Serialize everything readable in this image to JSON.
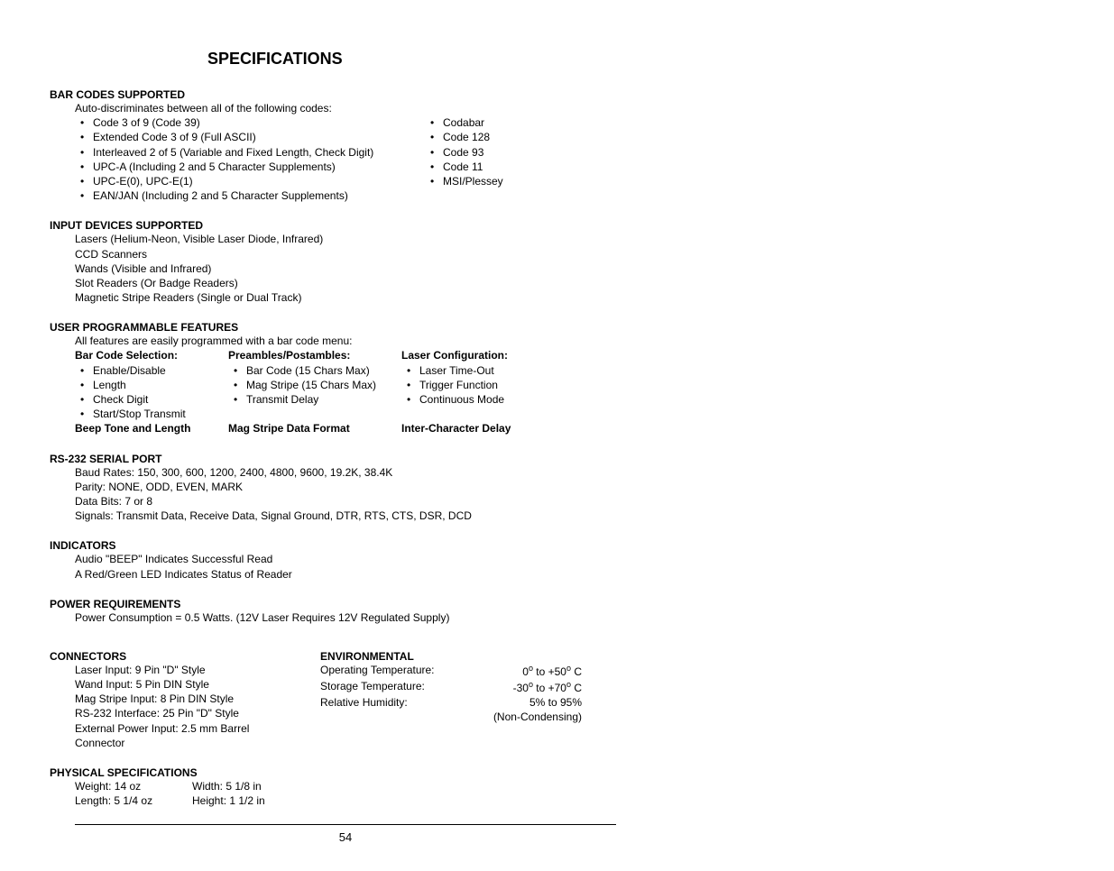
{
  "title": "SPECIFICATIONS",
  "pageNumber": "54",
  "barCodes": {
    "heading": "BAR CODES SUPPORTED",
    "intro": "Auto-discriminates between all of the following codes:",
    "left": [
      "Code 3 of  9 (Code 39)",
      "Extended Code 3 of 9 (Full ASCII)",
      "Interleaved 2 of 5 (Variable and Fixed Length, Check Digit)",
      "UPC-A (Including 2 and 5 Character Supplements)",
      "UPC-E(0), UPC-E(1)",
      "EAN/JAN (Including 2 and 5 Character Supplements)"
    ],
    "right": [
      "Codabar",
      "Code 128",
      "Code 93",
      "Code 11",
      "MSI/Plessey"
    ]
  },
  "inputDevices": {
    "heading": "INPUT DEVICES SUPPORTED",
    "lines": [
      "Lasers (Helium-Neon, Visible Laser Diode, Infrared)",
      "CCD Scanners",
      "Wands (Visible and Infrared)",
      "Slot Readers (Or Badge Readers)",
      "Magnetic Stripe Readers (Single or Dual Track)"
    ]
  },
  "features": {
    "heading": "USER PROGRAMMABLE FEATURES",
    "intro": "All features are easily programmed with a bar code menu:",
    "colA": {
      "head": "Bar Code Selection:",
      "items": [
        "Enable/Disable",
        "Length",
        "Check Digit",
        "Start/Stop Transmit"
      ],
      "footer": "Beep Tone and Length"
    },
    "colB": {
      "head": "Preambles/Postambles:",
      "items": [
        "Bar Code (15 Chars Max)",
        "Mag Stripe (15 Chars Max)",
        "Transmit Delay"
      ],
      "footer": "Mag Stripe Data Format"
    },
    "colC": {
      "head": "Laser Configuration:",
      "items": [
        "Laser Time-Out",
        "Trigger Function",
        "Continuous Mode"
      ],
      "footer": "Inter-Character Delay"
    }
  },
  "rs232": {
    "heading": "RS-232 SERIAL PORT",
    "lines": [
      "Baud Rates:  150,  300, 600, 1200, 2400, 4800, 9600, 19.2K, 38.4K",
      "Parity:  NONE, ODD, EVEN, MARK",
      "Data Bits:  7 or 8",
      "Signals:  Transmit Data, Receive Data, Signal Ground, DTR, RTS, CTS, DSR, DCD"
    ]
  },
  "indicators": {
    "heading": "INDICATORS",
    "lines": [
      "Audio \"BEEP\" Indicates Successful Read",
      "A Red/Green LED Indicates Status of Reader"
    ]
  },
  "power": {
    "heading": "POWER REQUIREMENTS",
    "lines": [
      "Power Consumption = 0.5 Watts. (12V Laser Requires 12V Regulated Supply)"
    ]
  },
  "connectors": {
    "heading": "CONNECTORS",
    "lines": [
      "Laser Input:  9 Pin \"D\" Style",
      "Wand Input:  5 Pin DIN Style",
      "Mag Stripe Input: 8 Pin  DIN Style",
      "RS-232 Interface:  25 Pin \"D\" Style",
      "External Power Input: 2.5 mm Barrel",
      "Connector"
    ]
  },
  "environmental": {
    "heading": "ENVIRONMENTAL",
    "rows": [
      {
        "label": "Operating Temperature:",
        "val": "0°  to  +50° C",
        "deg": true
      },
      {
        "label": "Storage Temperature:",
        "val": "-30°  to  +70° C",
        "deg": true
      },
      {
        "label": "Relative Humidity:",
        "val": "5%  to   95%"
      }
    ],
    "note": "(Non-Condensing)"
  },
  "physical": {
    "heading": "PHYSICAL  SPECIFICATIONS",
    "rows": [
      {
        "a": "Weight:  14     oz",
        "b": "Width:  5 1/8  in"
      },
      {
        "a": "Length:  5 1/4  oz",
        "b": "Height:  1 1/2 in"
      }
    ]
  }
}
